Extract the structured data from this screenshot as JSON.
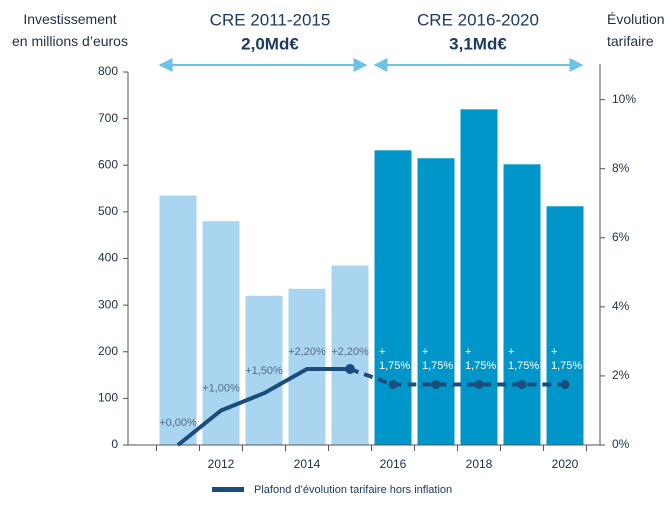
{
  "chart_data": {
    "type": "bar",
    "y_label": "Investissement\nen millions d’euros",
    "y2_label": "Évolution\ntarifaire",
    "periods": [
      {
        "label": "CRE 2011-2015",
        "total": "2,0Md€"
      },
      {
        "label": "CRE 2016-2020",
        "total": "3,1Md€"
      }
    ],
    "categories": [
      null,
      "2012",
      null,
      "2014",
      null,
      "2016",
      null,
      "2018",
      null,
      "2020"
    ],
    "values": [
      535,
      480,
      320,
      335,
      385,
      632,
      615,
      720,
      602,
      512
    ],
    "colors": [
      "#a9d5f0",
      "#a9d5f0",
      "#a9d5f0",
      "#a9d5f0",
      "#a9d5f0",
      "#0096c9",
      "#0096c9",
      "#0096c9",
      "#0096c9",
      "#0096c9"
    ],
    "ylim": [
      0,
      800
    ],
    "yticks": [
      0,
      100,
      200,
      300,
      400,
      500,
      600,
      700,
      800
    ],
    "y2lim": [
      0,
      10.8
    ],
    "y2ticks": [
      {
        "value": 0,
        "label": "0%"
      },
      {
        "value": 2,
        "label": "2%"
      },
      {
        "value": 4,
        "label": "4%"
      },
      {
        "value": 6,
        "label": "6%"
      },
      {
        "value": 8,
        "label": "8%"
      },
      {
        "value": 10,
        "label": "10%"
      }
    ],
    "series": [
      {
        "name": "Plafond d’évolution tarifaire hors inflation",
        "color": "#1a4c7d",
        "axis": "y2",
        "values": [
          0,
          1,
          1.5,
          2.2,
          2.2,
          1.75,
          1.75,
          1.75,
          1.75,
          1.75
        ],
        "value_labels": [
          "+0,00%",
          "+1,00%",
          "+1,50%",
          "+2,20%",
          "+2,20%",
          "+\n1,75%",
          "+\n1,75%",
          "+\n1,75%",
          "+\n1,75%",
          "+\n1,75%"
        ],
        "dashed_from": 4
      }
    ]
  }
}
